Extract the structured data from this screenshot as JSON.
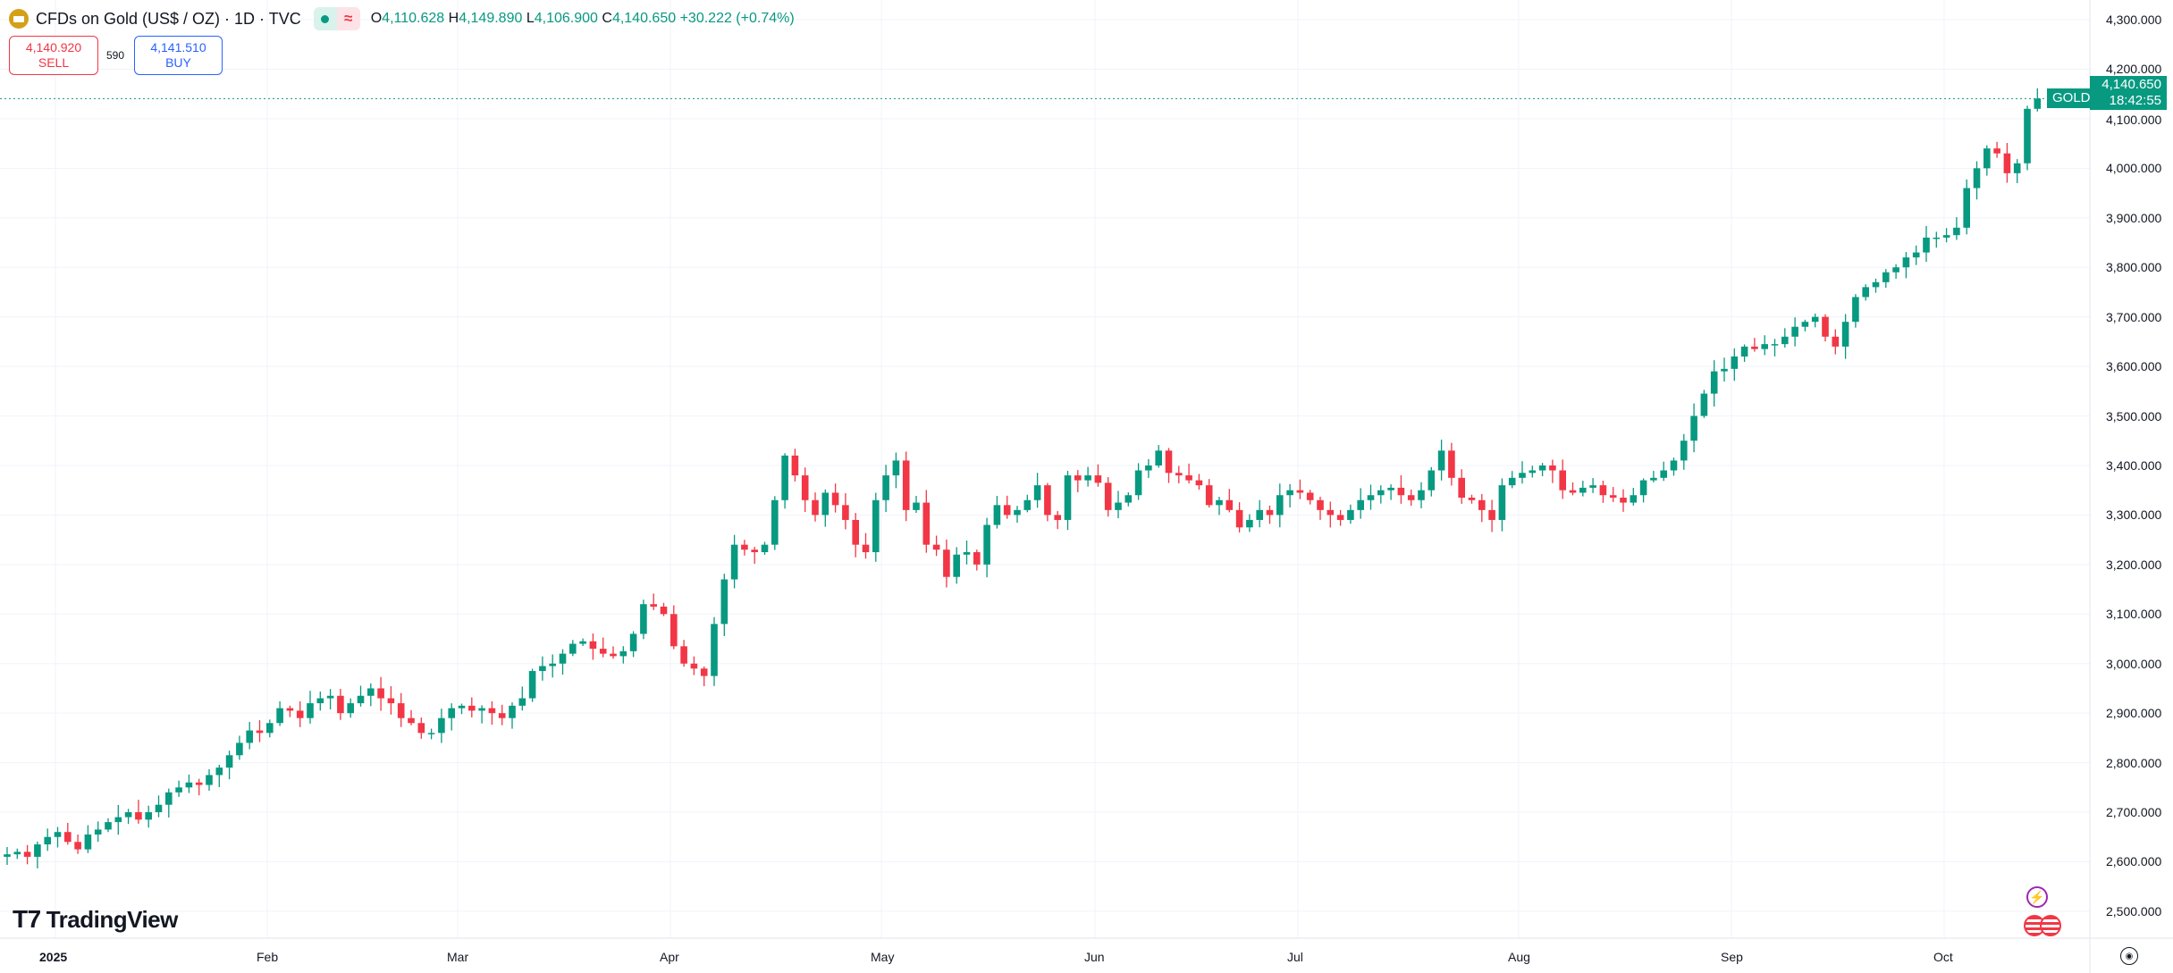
{
  "header": {
    "title": "CFDs on Gold (US$ / OZ) · 1D · TVC",
    "status_icon": "market-open-dot",
    "wave_icon": "≈",
    "o_label": "O",
    "o": "4,110.628",
    "h_label": "H",
    "h": "4,149.890",
    "l_label": "L",
    "l": "4,106.900",
    "c_label": "C",
    "c": "4,140.650",
    "change": "+30.222 (+0.74%)"
  },
  "trade": {
    "sell_price": "4,140.920",
    "sell_label": "SELL",
    "spread": "590",
    "buy_price": "4,141.510",
    "buy_label": "BUY"
  },
  "price_tag": {
    "symbol": "GOLD",
    "price": "4,140.650",
    "countdown": "18:42:55"
  },
  "price_axis": [
    "4,300.000",
    "4,200.000",
    "4,100.000",
    "4,000.000",
    "3,900.000",
    "3,800.000",
    "3,700.000",
    "3,600.000",
    "3,500.000",
    "3,400.000",
    "3,300.000",
    "3,200.000",
    "3,100.000",
    "3,000.000",
    "2,900.000",
    "2,800.000",
    "2,700.000",
    "2,600.000",
    "2,500.000"
  ],
  "time_axis": [
    "2025",
    "Feb",
    "Mar",
    "Apr",
    "May",
    "Jun",
    "Jul",
    "Aug",
    "Sep",
    "Oct"
  ],
  "logo": "TradingView",
  "colors": {
    "up": "#089981",
    "down": "#f23645"
  },
  "chart_data": {
    "type": "candlestick",
    "ylim": [
      2480,
      4320
    ],
    "first_open": 2610,
    "closes": [
      2615,
      2620,
      2610,
      2635,
      2650,
      2660,
      2640,
      2625,
      2655,
      2665,
      2680,
      2690,
      2700,
      2685,
      2700,
      2715,
      2740,
      2750,
      2760,
      2755,
      2775,
      2790,
      2815,
      2840,
      2865,
      2860,
      2880,
      2910,
      2905,
      2890,
      2920,
      2930,
      2935,
      2900,
      2920,
      2935,
      2950,
      2930,
      2920,
      2890,
      2880,
      2860,
      2860,
      2890,
      2910,
      2915,
      2905,
      2910,
      2900,
      2890,
      2915,
      2930,
      2985,
      2995,
      3000,
      3020,
      3040,
      3045,
      3030,
      3020,
      3015,
      3025,
      3060,
      3120,
      3115,
      3100,
      3035,
      3000,
      2990,
      2975,
      3080,
      3170,
      3240,
      3230,
      3225,
      3240,
      3330,
      3420,
      3380,
      3330,
      3300,
      3345,
      3320,
      3290,
      3240,
      3225,
      3330,
      3380,
      3410,
      3310,
      3325,
      3240,
      3230,
      3175,
      3220,
      3225,
      3200,
      3280,
      3320,
      3300,
      3310,
      3330,
      3360,
      3300,
      3290,
      3380,
      3370,
      3380,
      3365,
      3310,
      3325,
      3340,
      3390,
      3400,
      3430,
      3385,
      3380,
      3370,
      3360,
      3320,
      3330,
      3310,
      3275,
      3290,
      3310,
      3300,
      3340,
      3350,
      3345,
      3330,
      3310,
      3300,
      3290,
      3310,
      3330,
      3340,
      3350,
      3355,
      3340,
      3330,
      3350,
      3390,
      3430,
      3375,
      3335,
      3330,
      3310,
      3290,
      3360,
      3375,
      3385,
      3390,
      3400,
      3390,
      3350,
      3345,
      3355,
      3360,
      3340,
      3335,
      3325,
      3340,
      3370,
      3375,
      3390,
      3410,
      3450,
      3500,
      3545,
      3590,
      3595,
      3620,
      3640,
      3635,
      3645,
      3645,
      3660,
      3680,
      3690,
      3700,
      3660,
      3640,
      3690,
      3740,
      3760,
      3770,
      3790,
      3800,
      3820,
      3830,
      3860,
      3860,
      3865,
      3880,
      3960,
      4000,
      4040,
      4030,
      3990,
      4010,
      4120,
      4140.65
    ]
  }
}
